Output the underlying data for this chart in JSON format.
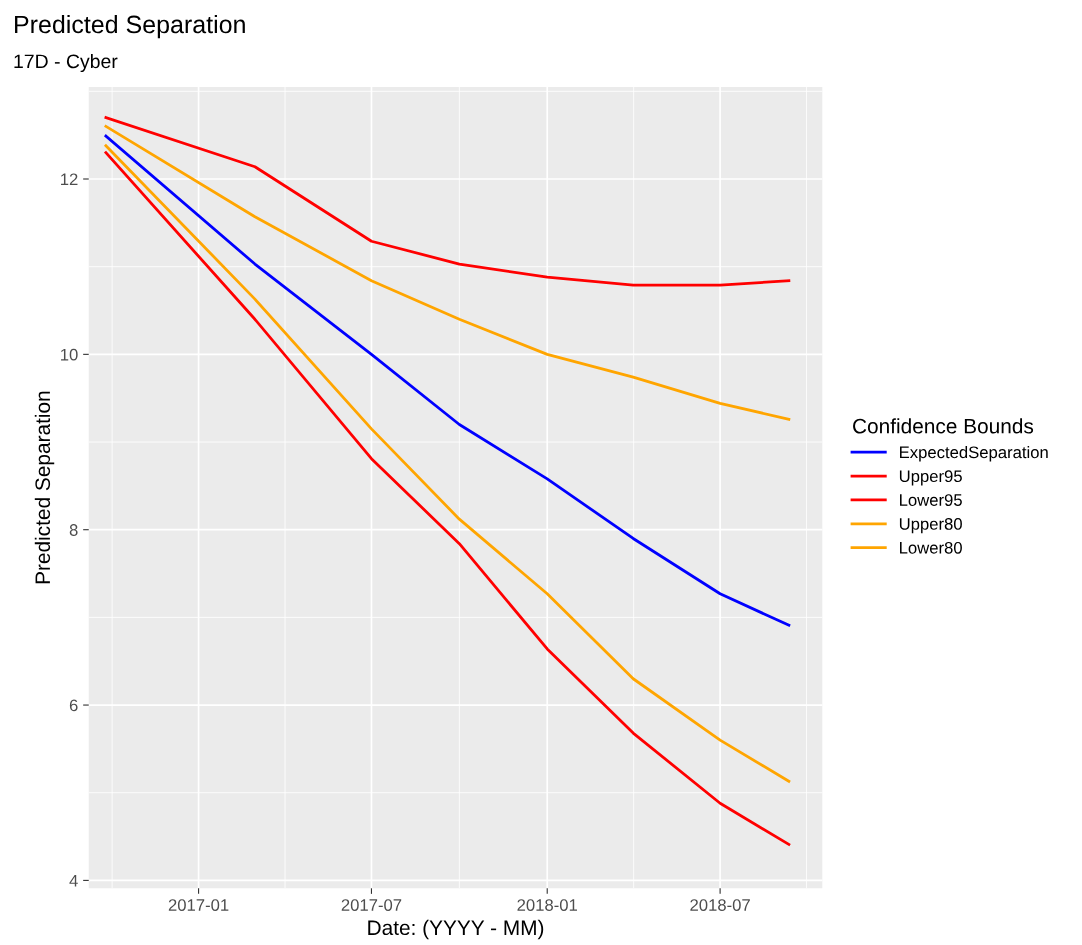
{
  "chart_data": {
    "type": "line",
    "title": "Predicted Separation",
    "subtitle": "17D - Cyber",
    "xlabel": "Date: (YYYY - MM)",
    "ylabel": "Predicted Separation",
    "legend_title": "Confidence Bounds",
    "x": [
      "2016-09-26",
      "2017-03-01",
      "2017-07-01",
      "2017-10-01",
      "2018-01-01",
      "2018-04-01",
      "2018-07-01",
      "2018-09-11"
    ],
    "series": [
      {
        "name": "ExpectedSeparation",
        "color": "#0000ff",
        "values": [
          12.49,
          11.03,
          10.0,
          9.2,
          8.58,
          7.9,
          7.27,
          6.91
        ]
      },
      {
        "name": "Upper95",
        "color": "#ff0000",
        "values": [
          12.7,
          12.14,
          11.29,
          11.03,
          10.88,
          10.79,
          10.79,
          10.84
        ]
      },
      {
        "name": "Lower95",
        "color": "#ff0000",
        "values": [
          12.3,
          10.4,
          8.81,
          7.84,
          6.64,
          5.68,
          4.88,
          4.41
        ]
      },
      {
        "name": "Upper80",
        "color": "#ffa500",
        "values": [
          12.6,
          11.57,
          10.84,
          10.4,
          10.0,
          9.74,
          9.44,
          9.26
        ]
      },
      {
        "name": "Lower80",
        "color": "#ffa500",
        "values": [
          12.38,
          10.63,
          9.15,
          8.12,
          7.27,
          6.3,
          5.6,
          5.13
        ]
      }
    ],
    "xlim": [
      "2016-09-08",
      "2018-10-16"
    ],
    "xticks": [
      "2017-01",
      "2017-07",
      "2018-01",
      "2018-07"
    ],
    "ylim": [
      3.91,
      13.05
    ],
    "yticks": [
      4,
      6,
      8,
      10,
      12
    ],
    "grid": true,
    "legend": "right",
    "line_style": "solid",
    "marker": "none"
  }
}
